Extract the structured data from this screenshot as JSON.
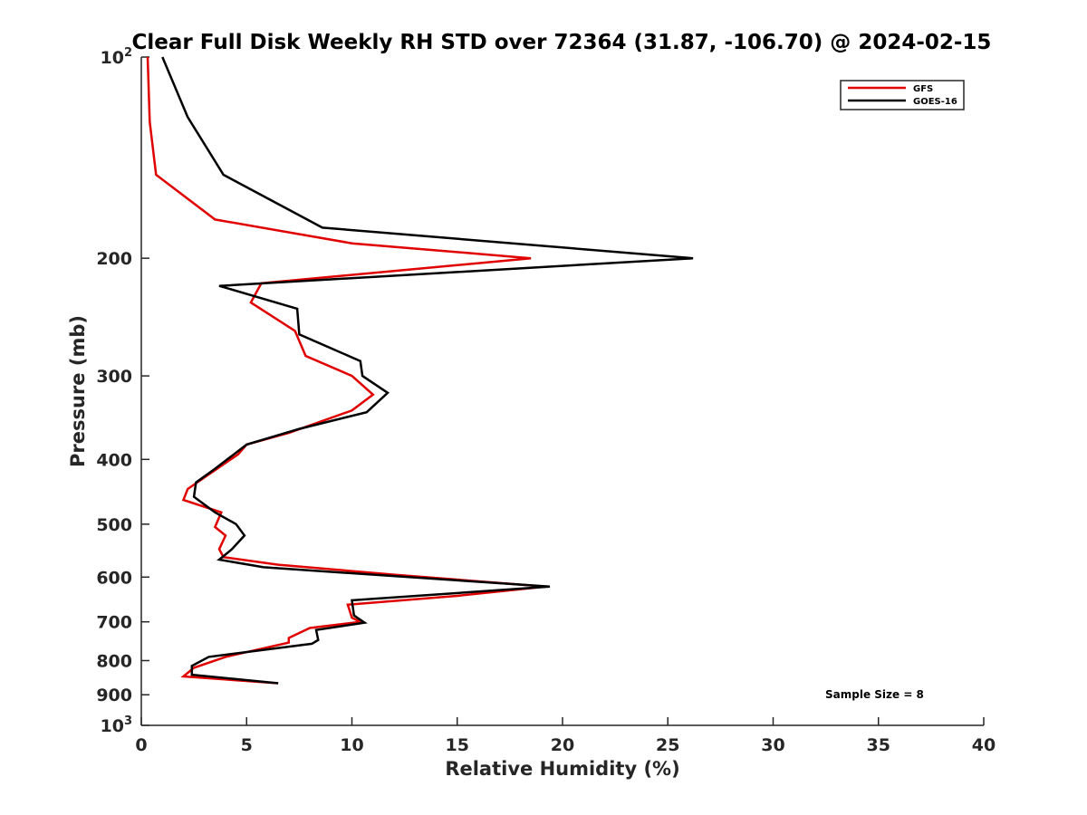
{
  "chart_data": {
    "type": "line",
    "title": "Clear Full Disk Weekly RH STD over 72364 (31.87, -106.70) @ 2024-02-15",
    "xlabel": "Relative Humidity (%)",
    "ylabel": "Pressure (mb)",
    "xlim": [
      0,
      40
    ],
    "ylim": [
      100,
      1000
    ],
    "yscale": "log",
    "y_reversed": true,
    "grid": false,
    "legend_position": "top-right",
    "x_ticks": [
      "0",
      "5",
      "10",
      "15",
      "20",
      "25",
      "30",
      "35",
      "40"
    ],
    "y_ticks": [
      {
        "value": 100,
        "base": "10",
        "exp": "2"
      },
      {
        "value": 200,
        "label": "200"
      },
      {
        "value": 300,
        "label": "300"
      },
      {
        "value": 400,
        "label": "400"
      },
      {
        "value": 500,
        "label": "500"
      },
      {
        "value": 600,
        "label": "600"
      },
      {
        "value": 700,
        "label": "700"
      },
      {
        "value": 800,
        "label": "800"
      },
      {
        "value": 900,
        "label": "900"
      },
      {
        "value": 1000,
        "base": "10",
        "exp": "3"
      }
    ],
    "series": [
      {
        "name": "GFS",
        "color": "#e00000",
        "points": [
          [
            0.3,
            100
          ],
          [
            0.4,
            125
          ],
          [
            0.7,
            150
          ],
          [
            3.5,
            175
          ],
          [
            10.0,
            190
          ],
          [
            18.5,
            200
          ],
          [
            5.7,
            218
          ],
          [
            5.2,
            233
          ],
          [
            7.3,
            257
          ],
          [
            7.8,
            280
          ],
          [
            10.0,
            300
          ],
          [
            11.0,
            320
          ],
          [
            10.0,
            338
          ],
          [
            7.0,
            365
          ],
          [
            5.0,
            380
          ],
          [
            4.6,
            393
          ],
          [
            3.6,
            413
          ],
          [
            2.2,
            443
          ],
          [
            2.0,
            460
          ],
          [
            3.8,
            480
          ],
          [
            3.5,
            505
          ],
          [
            4.0,
            520
          ],
          [
            3.7,
            545
          ],
          [
            3.9,
            560
          ],
          [
            6.5,
            575
          ],
          [
            12.0,
            595
          ],
          [
            19.2,
            620
          ],
          [
            15.0,
            640
          ],
          [
            9.8,
            660
          ],
          [
            10.0,
            690
          ],
          [
            10.4,
            700
          ],
          [
            8.0,
            715
          ],
          [
            7.0,
            740
          ],
          [
            7.0,
            752
          ],
          [
            4.0,
            790
          ],
          [
            2.5,
            820
          ],
          [
            2.0,
            845
          ],
          [
            6.5,
            865
          ]
        ]
      },
      {
        "name": "GOES-16",
        "color": "#000000",
        "points": [
          [
            1.0,
            100
          ],
          [
            2.2,
            123
          ],
          [
            3.9,
            150
          ],
          [
            8.6,
            180
          ],
          [
            26.2,
            200
          ],
          [
            3.7,
            220
          ],
          [
            7.4,
            238
          ],
          [
            7.5,
            260
          ],
          [
            10.4,
            285
          ],
          [
            10.5,
            300
          ],
          [
            11.7,
            318
          ],
          [
            10.7,
            340
          ],
          [
            7.5,
            360
          ],
          [
            5.0,
            380
          ],
          [
            3.5,
            413
          ],
          [
            2.6,
            433
          ],
          [
            2.5,
            455
          ],
          [
            3.5,
            480
          ],
          [
            4.5,
            500
          ],
          [
            4.9,
            520
          ],
          [
            4.3,
            545
          ],
          [
            3.7,
            565
          ],
          [
            5.8,
            580
          ],
          [
            19.4,
            620
          ],
          [
            10.0,
            650
          ],
          [
            10.1,
            685
          ],
          [
            10.6,
            702
          ],
          [
            8.3,
            720
          ],
          [
            8.4,
            745
          ],
          [
            8.1,
            755
          ],
          [
            3.2,
            790
          ],
          [
            2.4,
            815
          ],
          [
            2.4,
            840
          ],
          [
            6.5,
            865
          ]
        ]
      }
    ],
    "annotations": {
      "sample_size": "Sample Size = 8"
    }
  }
}
